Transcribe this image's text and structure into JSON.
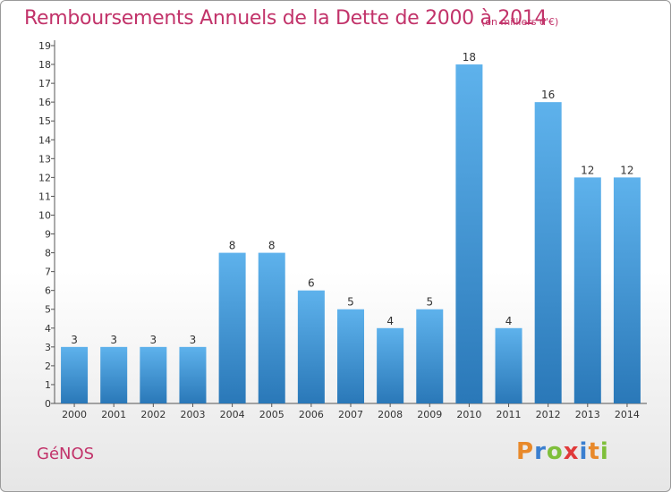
{
  "header": {
    "title": "Remboursements Annuels de la Dette de 2000 à 2014",
    "subtitle": "(en milliers d'€)"
  },
  "footer": {
    "city": "GéNOS",
    "logo": [
      "P",
      "r",
      "o",
      "x",
      "i",
      "t",
      "i"
    ],
    "logo_colors": [
      "#e8892a",
      "#3a7fd0",
      "#7fbf3b",
      "#e03a3a",
      "#3a7fd0",
      "#e8892a",
      "#7fbf3b"
    ]
  },
  "chart_data": {
    "type": "bar",
    "title": "Remboursements Annuels de la Dette de 2000 à 2014",
    "subtitle": "(en milliers d'€)",
    "categories": [
      "2000",
      "2001",
      "2002",
      "2003",
      "2004",
      "2005",
      "2006",
      "2007",
      "2008",
      "2009",
      "2010",
      "2011",
      "2012",
      "2013",
      "2014"
    ],
    "values": [
      3,
      3,
      3,
      3,
      8,
      8,
      6,
      5,
      4,
      5,
      18,
      4,
      16,
      12,
      12
    ],
    "ylim": [
      0,
      19
    ],
    "yticks": [
      0,
      1,
      2,
      3,
      4,
      5,
      6,
      7,
      8,
      9,
      10,
      11,
      12,
      13,
      14,
      15,
      16,
      17,
      18,
      19
    ],
    "xlabel": "",
    "ylabel": "",
    "grid": false,
    "bar_color": "#3f97d9"
  }
}
